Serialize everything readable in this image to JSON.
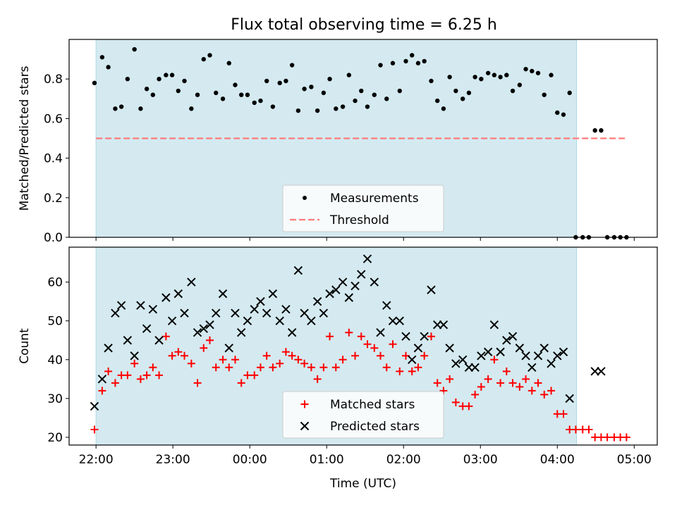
{
  "title": "Flux total observing time = 6.25 h",
  "colors": {
    "shade": "#d4eaf0",
    "shade_edge": "#add8e6",
    "measurement": "#000000",
    "threshold": "#ff7b7b",
    "matched": "#ff0000",
    "predicted": "#000000"
  },
  "chart_data": [
    {
      "type": "scatter",
      "name": "ratio",
      "ylabel": "Matched/Predicted stars",
      "xlabel": "",
      "xlim": [
        21.65,
        29.3
      ],
      "ylim": [
        0,
        1.0
      ],
      "yticks": [
        0.0,
        0.2,
        0.4,
        0.6,
        0.8
      ],
      "yticklabels": [
        "0.0",
        "0.2",
        "0.4",
        "0.6",
        "0.8"
      ],
      "shaded_span": [
        22.0,
        28.25
      ],
      "threshold": {
        "value": 0.5,
        "x_range": [
          22.0,
          28.9
        ]
      },
      "legend": {
        "position": "lower center",
        "labels": [
          "Measurements",
          "Threshold"
        ]
      },
      "series": [
        {
          "name": "Measurements",
          "marker": "dot",
          "x": [
            21.98,
            22.08,
            22.16,
            22.25,
            22.33,
            22.41,
            22.5,
            22.58,
            22.66,
            22.74,
            22.82,
            22.91,
            22.99,
            23.07,
            23.15,
            23.24,
            23.32,
            23.4,
            23.48,
            23.56,
            23.65,
            23.73,
            23.81,
            23.89,
            23.97,
            24.06,
            24.14,
            24.22,
            24.3,
            24.39,
            24.47,
            24.55,
            24.63,
            24.71,
            24.8,
            24.88,
            24.96,
            25.04,
            25.12,
            25.21,
            25.29,
            25.37,
            25.45,
            25.53,
            25.62,
            25.7,
            25.78,
            25.86,
            25.95,
            26.03,
            26.11,
            26.19,
            26.27,
            26.36,
            26.44,
            26.52,
            26.6,
            26.68,
            26.77,
            26.85,
            26.93,
            27.01,
            27.1,
            27.18,
            27.26,
            27.34,
            27.42,
            27.51,
            27.59,
            27.67,
            27.75,
            27.83,
            27.92,
            28.0,
            28.08,
            28.16,
            28.24,
            28.33,
            28.41,
            28.49,
            28.57,
            28.65,
            28.74,
            28.82,
            28.9
          ],
          "y": [
            0.78,
            0.91,
            0.86,
            0.65,
            0.66,
            0.8,
            0.95,
            0.65,
            0.75,
            0.72,
            0.8,
            0.82,
            0.82,
            0.74,
            0.79,
            0.65,
            0.72,
            0.9,
            0.92,
            0.73,
            0.7,
            0.88,
            0.77,
            0.72,
            0.72,
            0.68,
            0.69,
            0.79,
            0.66,
            0.78,
            0.79,
            0.87,
            0.64,
            0.75,
            0.76,
            0.64,
            0.73,
            0.8,
            0.65,
            0.66,
            0.82,
            0.69,
            0.74,
            0.66,
            0.72,
            0.87,
            0.7,
            0.88,
            0.74,
            0.89,
            0.92,
            0.88,
            0.89,
            0.79,
            0.69,
            0.65,
            0.81,
            0.74,
            0.7,
            0.73,
            0.81,
            0.8,
            0.83,
            0.82,
            0.81,
            0.82,
            0.74,
            0.77,
            0.85,
            0.84,
            0.83,
            0.72,
            0.82,
            0.63,
            0.62,
            0.73,
            0.0,
            0.0,
            0.0,
            0.54,
            0.54,
            0.0,
            0.0,
            0.0,
            0.0
          ]
        }
      ]
    },
    {
      "type": "scatter",
      "name": "counts",
      "ylabel": "Count",
      "xlabel": "Time (UTC)",
      "xlim": [
        21.65,
        29.3
      ],
      "ylim": [
        18,
        69
      ],
      "yticks": [
        20,
        30,
        40,
        50,
        60
      ],
      "yticklabels": [
        "20",
        "30",
        "40",
        "50",
        "60"
      ],
      "xticks": [
        22,
        23,
        24,
        25,
        26,
        27,
        28,
        29
      ],
      "xticklabels": [
        "22:00",
        "23:00",
        "00:00",
        "01:00",
        "02:00",
        "03:00",
        "04:00",
        "05:00"
      ],
      "shaded_span": [
        22.0,
        28.25
      ],
      "legend": {
        "position": "lower center",
        "labels": [
          "Matched stars",
          "Predicted stars"
        ]
      },
      "series": [
        {
          "name": "Matched stars",
          "marker": "plus",
          "x": [
            21.98,
            22.08,
            22.16,
            22.25,
            22.33,
            22.41,
            22.5,
            22.58,
            22.66,
            22.74,
            22.82,
            22.91,
            22.99,
            23.07,
            23.15,
            23.24,
            23.32,
            23.4,
            23.48,
            23.56,
            23.65,
            23.73,
            23.81,
            23.89,
            23.97,
            24.06,
            24.14,
            24.22,
            24.3,
            24.39,
            24.47,
            24.55,
            24.63,
            24.71,
            24.8,
            24.88,
            24.96,
            25.04,
            25.12,
            25.21,
            25.29,
            25.37,
            25.45,
            25.53,
            25.62,
            25.7,
            25.78,
            25.86,
            25.95,
            26.03,
            26.11,
            26.19,
            26.27,
            26.36,
            26.44,
            26.52,
            26.6,
            26.68,
            26.77,
            26.85,
            26.93,
            27.01,
            27.1,
            27.18,
            27.26,
            27.34,
            27.42,
            27.51,
            27.59,
            27.67,
            27.75,
            27.83,
            27.92,
            28.0,
            28.08,
            28.16,
            28.24,
            28.33,
            28.41,
            28.49,
            28.57,
            28.65,
            28.74,
            28.82,
            28.9
          ],
          "y": [
            22,
            32,
            37,
            34,
            36,
            36,
            39,
            35,
            36,
            38,
            36,
            46,
            41,
            42,
            41,
            39,
            34,
            43,
            45,
            38,
            40,
            38,
            40,
            34,
            36,
            36,
            38,
            41,
            38,
            39,
            42,
            41,
            40,
            39,
            38,
            35,
            38,
            46,
            38,
            40,
            47,
            41,
            46,
            44,
            43,
            41,
            38,
            44,
            37,
            41,
            37,
            38,
            41,
            46,
            34,
            32,
            35,
            29,
            28,
            28,
            31,
            33,
            35,
            40,
            34,
            37,
            34,
            33,
            35,
            32,
            34,
            31,
            32,
            26,
            26,
            22,
            22,
            22,
            22,
            20,
            20,
            20,
            20,
            20,
            20
          ]
        },
        {
          "name": "Predicted stars",
          "marker": "x",
          "x": [
            21.98,
            22.08,
            22.16,
            22.25,
            22.33,
            22.41,
            22.5,
            22.58,
            22.66,
            22.74,
            22.82,
            22.91,
            22.99,
            23.07,
            23.15,
            23.24,
            23.32,
            23.4,
            23.48,
            23.56,
            23.65,
            23.73,
            23.81,
            23.89,
            23.97,
            24.06,
            24.14,
            24.22,
            24.3,
            24.39,
            24.47,
            24.55,
            24.63,
            24.71,
            24.8,
            24.88,
            24.96,
            25.04,
            25.12,
            25.21,
            25.29,
            25.37,
            25.45,
            25.53,
            25.62,
            25.7,
            25.78,
            25.86,
            25.95,
            26.03,
            26.11,
            26.19,
            26.27,
            26.36,
            26.44,
            26.52,
            26.6,
            26.68,
            26.77,
            26.85,
            26.93,
            27.01,
            27.1,
            27.18,
            27.26,
            27.34,
            27.42,
            27.51,
            27.59,
            27.67,
            27.75,
            27.83,
            27.92,
            28.0,
            28.08,
            28.16,
            28.24,
            28.33,
            28.41,
            28.49,
            28.57,
            28.65,
            28.74,
            28.82,
            28.9
          ],
          "y": [
            28,
            35,
            43,
            52,
            54,
            45,
            41,
            54,
            48,
            53,
            45,
            56,
            50,
            57,
            52,
            60,
            47,
            48,
            49,
            52,
            57,
            43,
            52,
            47,
            50,
            53,
            55,
            52,
            57,
            50,
            53,
            47,
            63,
            52,
            50,
            55,
            52,
            57,
            58,
            60,
            56,
            59,
            62,
            66,
            60,
            47,
            54,
            50,
            50,
            46,
            40,
            43,
            46,
            58,
            49,
            49,
            43,
            39,
            40,
            38,
            38,
            41,
            42,
            49,
            42,
            45,
            46,
            43,
            41,
            38,
            41,
            43,
            39,
            41,
            42,
            30,
            null,
            null,
            null,
            37,
            37,
            null,
            null,
            null,
            null
          ]
        }
      ]
    }
  ]
}
